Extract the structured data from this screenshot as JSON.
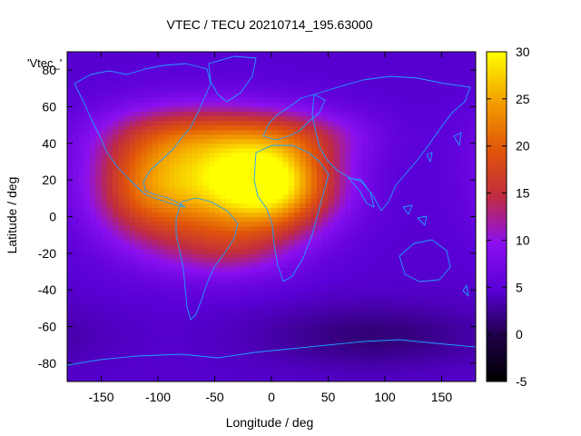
{
  "chart_data": {
    "type": "heatmap",
    "title": "VTEC / TECU 20210714_195.63000",
    "xlabel": "Longitude / deg",
    "ylabel": "Latitude / deg",
    "xlim": [
      -180,
      180
    ],
    "ylim": [
      -90,
      90
    ],
    "x_ticks": [
      -150,
      -100,
      -50,
      0,
      50,
      100,
      150
    ],
    "y_ticks": [
      -80,
      -60,
      -40,
      -20,
      0,
      20,
      40,
      60,
      80
    ],
    "colorbar": {
      "range": [
        -5,
        30
      ],
      "ticks": [
        -5,
        0,
        5,
        10,
        15,
        20,
        25,
        30
      ],
      "colormap": "gnuplot-pm3d (black-purple-red-orange-yellow)"
    },
    "series_key": "'Vtec_'",
    "field_model": {
      "background_tecu": 4.5,
      "peaks": [
        {
          "lon": 0,
          "lat": 18,
          "amp_tecu": 21,
          "sigma_lon": 40,
          "sigma_lat": 18
        },
        {
          "lon": -60,
          "lat": 20,
          "amp_tecu": 14,
          "sigma_lon": 55,
          "sigma_lat": 22
        },
        {
          "lon": -110,
          "lat": 15,
          "amp_tecu": 9,
          "sigma_lon": 35,
          "sigma_lat": 22
        },
        {
          "lon": -40,
          "lat": -18,
          "amp_tecu": 6,
          "sigma_lon": 40,
          "sigma_lat": 12
        },
        {
          "lon": -60,
          "lat": 45,
          "amp_tecu": 7,
          "sigma_lon": 60,
          "sigma_lat": 12
        },
        {
          "lon": 40,
          "lat": 45,
          "amp_tecu": 4,
          "sigma_lon": 40,
          "sigma_lat": 10
        }
      ],
      "troughs": [
        {
          "lon": 90,
          "lat": -65,
          "amp_tecu": -3,
          "sigma_lon": 70,
          "sigma_lat": 12
        }
      ]
    }
  }
}
